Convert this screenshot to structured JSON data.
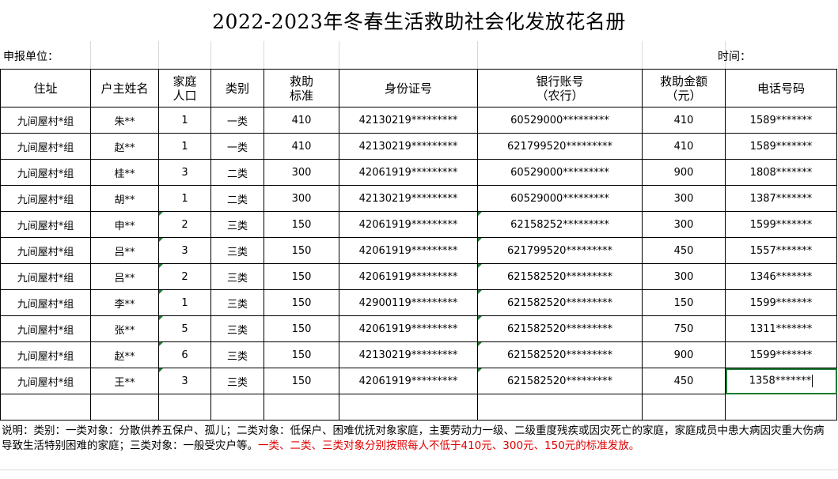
{
  "title": "2022-2023年冬春生活救助社会化发放花名册",
  "report_unit_label": "申报单位：",
  "time_label": "时间：",
  "columns": [
    "住址",
    "户主姓名",
    "家庭人口",
    "类别",
    "救助标准",
    "身份证号",
    "银行账号（农行）",
    "救助金额（元）",
    "电话号码"
  ],
  "column_lines": {
    "c2": [
      "家庭",
      "人口"
    ],
    "c4": [
      "救助",
      "标准"
    ],
    "c6": [
      "银行账号",
      "（农行）"
    ],
    "c7": [
      "救助金额",
      "（元）"
    ]
  },
  "rows": [
    {
      "addr": "九间屋村*组",
      "name": "朱**",
      "pop": "1",
      "cat": "一类",
      "std": "410",
      "id": "42130219*********",
      "acct": "60529000*********",
      "amount": "410",
      "phone": "1589*******"
    },
    {
      "addr": "九间屋村*组",
      "name": "赵**",
      "pop": "1",
      "cat": "一类",
      "std": "410",
      "id": "42130219*********",
      "acct": "621799520*********",
      "amount": "410",
      "phone": "1589*******"
    },
    {
      "addr": "九间屋村*组",
      "name": "桂**",
      "pop": "3",
      "cat": "二类",
      "std": "300",
      "id": "42061919*********",
      "acct": "60529000*********",
      "amount": "900",
      "phone": "1808*******"
    },
    {
      "addr": "九间屋村*组",
      "name": "胡**",
      "pop": "1",
      "cat": "二类",
      "std": "300",
      "id": "42130219*********",
      "acct": "60529000*********",
      "amount": "300",
      "phone": "1387*******"
    },
    {
      "addr": "九间屋村*组",
      "name": "申**",
      "pop": "2",
      "cat": "三类",
      "std": "150",
      "id": "42061919*********",
      "acct": "62158252*********",
      "amount": "300",
      "phone": "1599*******"
    },
    {
      "addr": "九间屋村*组",
      "name": "吕**",
      "pop": "3",
      "cat": "三类",
      "std": "150",
      "id": "42061919*********",
      "acct": "621799520*********",
      "amount": "450",
      "phone": "1557*******"
    },
    {
      "addr": "九间屋村*组",
      "name": "吕**",
      "pop": "2",
      "cat": "三类",
      "std": "150",
      "id": "42061919*********",
      "acct": "621582520*********",
      "amount": "300",
      "phone": "1346*******"
    },
    {
      "addr": "九间屋村*组",
      "name": "李**",
      "pop": "1",
      "cat": "三类",
      "std": "150",
      "id": "42900119*********",
      "acct": "621582520*********",
      "amount": "150",
      "phone": "1599*******"
    },
    {
      "addr": "九间屋村*组",
      "name": "张**",
      "pop": "5",
      "cat": "三类",
      "std": "150",
      "id": "42061919*********",
      "acct": "621582520*********",
      "amount": "750",
      "phone": "1311*******"
    },
    {
      "addr": "九间屋村*组",
      "name": "赵**",
      "pop": "6",
      "cat": "三类",
      "std": "150",
      "id": "42130219*********",
      "acct": "621582520*********",
      "amount": "900",
      "phone": "1599*******"
    },
    {
      "addr": "九间屋村*组",
      "name": "王**",
      "pop": "3",
      "cat": "三类",
      "std": "150",
      "id": "42061919*********",
      "acct": "621582520*********",
      "amount": "450",
      "phone": "1358*******"
    }
  ],
  "note_black": "说明：类别：一类对象：分散供养五保户、孤儿；二类对象：低保户、困难优抚对象家庭，主要劳动力一级、二级重度残疾或因灾死亡的家庭，家庭成员中患大病因灾重大伤病导致生活特别困难的家庭；三类对象：一般受灾户等。",
  "note_red": "一类、二类、三类对象分别按照每人不低于410元、300元、150元的标准发放。",
  "colors": {
    "selection_border": "#1e7b34",
    "note_red": "#e00000"
  }
}
